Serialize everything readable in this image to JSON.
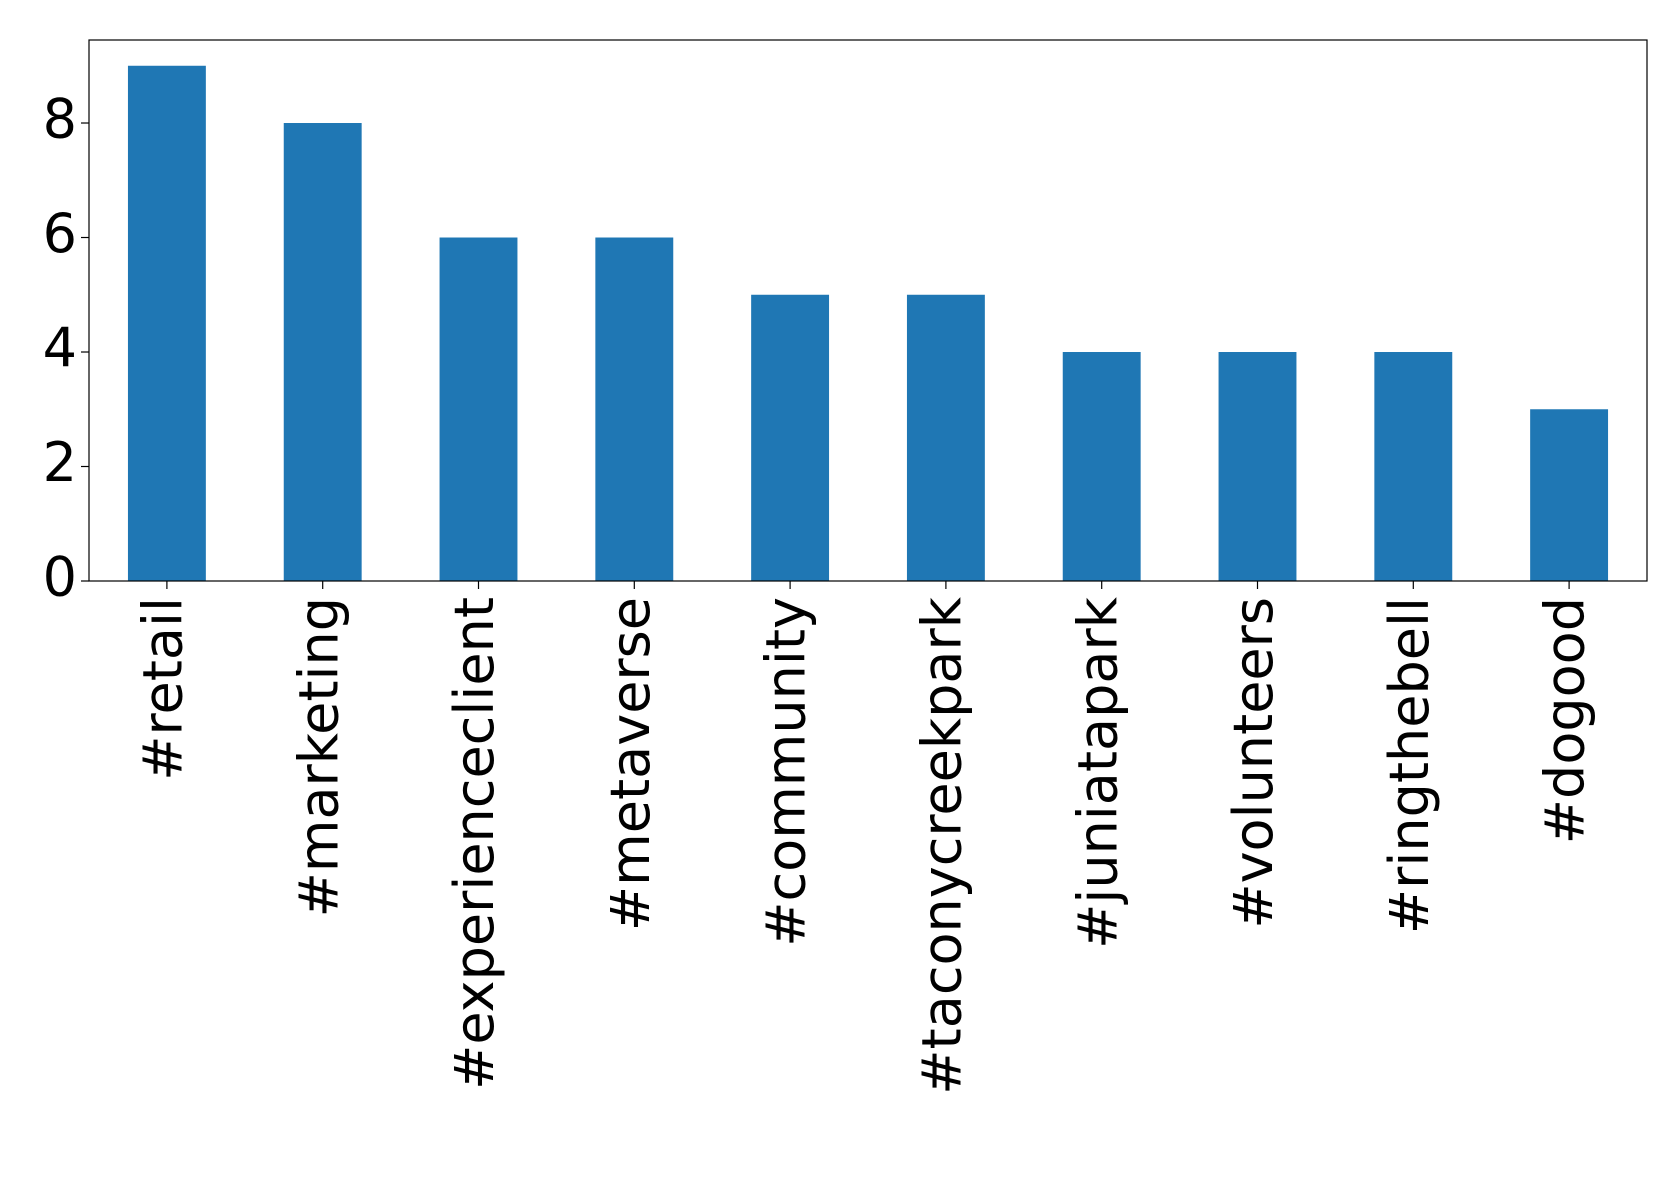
{
  "chart_data": {
    "type": "bar",
    "categories": [
      "#retail",
      "#marketing",
      "#experienceclient",
      "#metaverse",
      "#community",
      "#taconycreekpark",
      "#juniatapark",
      "#volunteers",
      "#ringthebell",
      "#dogood"
    ],
    "values": [
      9,
      8,
      6,
      6,
      5,
      5,
      4,
      4,
      4,
      3
    ],
    "color": "#1f77b4",
    "ylim": [
      0,
      9.45
    ],
    "yticks": [
      0,
      2,
      4,
      6,
      8
    ],
    "grid": false
  }
}
